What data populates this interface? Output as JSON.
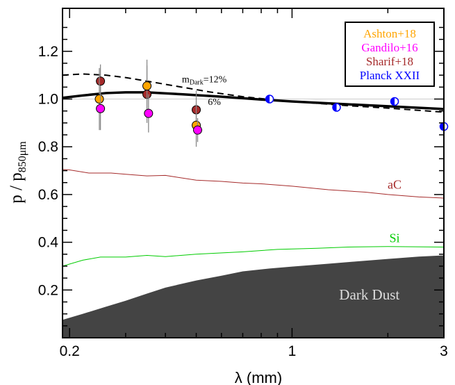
{
  "chart_data": {
    "type": "scatter",
    "xlabel": "λ (mm)",
    "ylabel_main": "p / p",
    "ylabel_sub": "850μm",
    "x_scale": "log",
    "xlim": [
      0.19,
      3.0
    ],
    "ylim": [
      0.0,
      1.38
    ],
    "x_ticks": [
      {
        "value": 0.2,
        "label": "0.2"
      },
      {
        "value": 1,
        "label": "1"
      },
      {
        "value": 3,
        "label": "3"
      }
    ],
    "y_ticks": [
      {
        "value": 0.2,
        "label": "0.2"
      },
      {
        "value": 0.4,
        "label": "0.4"
      },
      {
        "value": 0.6,
        "label": "0.6"
      },
      {
        "value": 0.8,
        "label": "0.8"
      },
      {
        "value": 1.0,
        "label": "1.0"
      },
      {
        "value": 1.2,
        "label": "1.2"
      }
    ],
    "reference_line_y": 1.0,
    "legend": {
      "placement": "top-right",
      "entries": [
        {
          "label": "Ashton+18",
          "color": "#FFA500"
        },
        {
          "label": "Gandilo+16",
          "color": "#FF00FF"
        },
        {
          "label": "Sharif+18",
          "color": "#A52A2A"
        },
        {
          "label": "Planck XXII",
          "color": "#0000FF"
        }
      ]
    },
    "points": [
      {
        "dataset": "Sharif+18",
        "color": "#A52A2A",
        "style": "circle",
        "data": [
          {
            "x": 0.25,
            "y": 1.075,
            "err": 0.07
          },
          {
            "x": 0.35,
            "y": 1.02,
            "err": 0.12
          },
          {
            "x": 0.5,
            "y": 0.955,
            "err": 0.08
          }
        ]
      },
      {
        "dataset": "Ashton+18",
        "color": "#FFA500",
        "style": "circle",
        "data": [
          {
            "x": 0.248,
            "y": 1.0,
            "err": 0.13
          },
          {
            "x": 0.35,
            "y": 1.055,
            "err": 0.11
          },
          {
            "x": 0.5,
            "y": 0.89,
            "err": 0.09
          }
        ]
      },
      {
        "dataset": "Gandilo+16",
        "color": "#FF00FF",
        "style": "circle",
        "data": [
          {
            "x": 0.25,
            "y": 0.96,
            "err": 0.09
          },
          {
            "x": 0.354,
            "y": 0.94,
            "err": 0.08
          },
          {
            "x": 0.505,
            "y": 0.87,
            "err": 0.05
          }
        ]
      },
      {
        "dataset": "Planck XXII",
        "color": "#0000FF",
        "style": "half-filled-circle",
        "data": [
          {
            "x": 0.85,
            "y": 1.0,
            "err": 0.01
          },
          {
            "x": 1.38,
            "y": 0.965,
            "err": 0.01
          },
          {
            "x": 2.1,
            "y": 0.99,
            "err": 0.01
          },
          {
            "x": 3.0,
            "y": 0.885,
            "err": 0.01
          }
        ]
      }
    ],
    "curves": [
      {
        "name": "6%",
        "style": "solid-thick",
        "color": "#000000",
        "label_at": {
          "x": 0.57,
          "y": 0.975
        },
        "data": [
          [
            0.19,
            1.005
          ],
          [
            0.22,
            1.015
          ],
          [
            0.26,
            1.025
          ],
          [
            0.3,
            1.028
          ],
          [
            0.35,
            1.028
          ],
          [
            0.45,
            1.02
          ],
          [
            0.6,
            1.01
          ],
          [
            0.8,
            0.998
          ],
          [
            1.0,
            0.99
          ],
          [
            1.5,
            0.978
          ],
          [
            2.0,
            0.97
          ],
          [
            3.0,
            0.958
          ]
        ]
      },
      {
        "name": "m=12%",
        "style": "dashed",
        "color": "#000000",
        "label_main": "m",
        "label_sub": "Dark",
        "label_suffix": "=12%",
        "label_at": {
          "x": 0.53,
          "y": 1.07
        },
        "data": [
          [
            0.19,
            1.1
          ],
          [
            0.22,
            1.105
          ],
          [
            0.26,
            1.1
          ],
          [
            0.3,
            1.09
          ],
          [
            0.35,
            1.075
          ],
          [
            0.45,
            1.05
          ],
          [
            0.55,
            1.03
          ],
          [
            0.7,
            1.01
          ],
          [
            0.9,
            0.995
          ],
          [
            1.2,
            0.982
          ],
          [
            1.5,
            0.972
          ],
          [
            2.0,
            0.962
          ],
          [
            3.0,
            0.945
          ]
        ]
      },
      {
        "name": "aC",
        "style": "solid-thin",
        "color": "#A52A2A",
        "label_at": {
          "x": 2.1,
          "y": 0.625
        },
        "data": [
          [
            0.19,
            0.705
          ],
          [
            0.2,
            0.703
          ],
          [
            0.23,
            0.69
          ],
          [
            0.27,
            0.69
          ],
          [
            0.3,
            0.685
          ],
          [
            0.35,
            0.678
          ],
          [
            0.4,
            0.68
          ],
          [
            0.5,
            0.66
          ],
          [
            0.6,
            0.655
          ],
          [
            0.7,
            0.648
          ],
          [
            0.8,
            0.645
          ],
          [
            1.0,
            0.635
          ],
          [
            1.3,
            0.62
          ],
          [
            1.7,
            0.61
          ],
          [
            2.0,
            0.6
          ],
          [
            2.5,
            0.59
          ],
          [
            3.0,
            0.585
          ]
        ]
      },
      {
        "name": "Si",
        "style": "solid-thin",
        "color": "#00CC00",
        "label_at": {
          "x": 2.1,
          "y": 0.4
        },
        "data": [
          [
            0.19,
            0.3
          ],
          [
            0.22,
            0.325
          ],
          [
            0.25,
            0.338
          ],
          [
            0.3,
            0.338
          ],
          [
            0.35,
            0.345
          ],
          [
            0.4,
            0.34
          ],
          [
            0.5,
            0.35
          ],
          [
            0.7,
            0.36
          ],
          [
            0.9,
            0.37
          ],
          [
            1.2,
            0.375
          ],
          [
            1.5,
            0.38
          ],
          [
            2.0,
            0.382
          ],
          [
            3.0,
            0.38
          ]
        ]
      }
    ],
    "area": {
      "name": "Dark Dust",
      "color": "#444444",
      "label_color": "#DDDDDD",
      "label_at": {
        "x": 1.75,
        "y": 0.16
      },
      "data": [
        [
          0.19,
          0.075
        ],
        [
          0.22,
          0.1
        ],
        [
          0.26,
          0.13
        ],
        [
          0.3,
          0.155
        ],
        [
          0.35,
          0.185
        ],
        [
          0.4,
          0.21
        ],
        [
          0.5,
          0.24
        ],
        [
          0.6,
          0.26
        ],
        [
          0.7,
          0.278
        ],
        [
          0.85,
          0.29
        ],
        [
          1.0,
          0.298
        ],
        [
          1.3,
          0.31
        ],
        [
          1.6,
          0.32
        ],
        [
          2.0,
          0.33
        ],
        [
          2.5,
          0.34
        ],
        [
          3.0,
          0.345
        ]
      ]
    }
  }
}
